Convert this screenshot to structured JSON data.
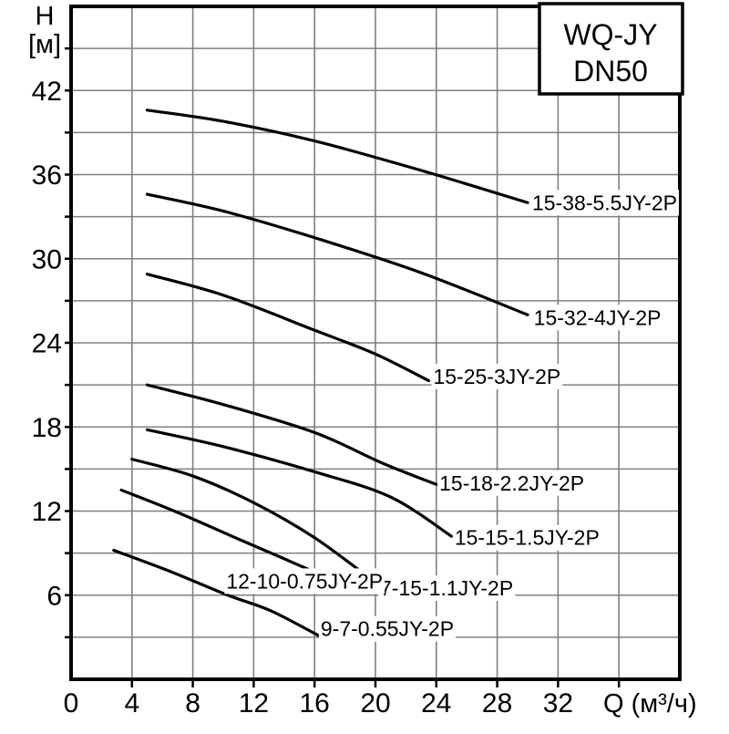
{
  "legend_box": {
    "line1": "WQ-JY",
    "line2": "DN50"
  },
  "axes": {
    "y_title_line1": "H",
    "y_title_line2": "[м]",
    "x_title": "Q (м³/ч)"
  },
  "chart_data": {
    "type": "line",
    "title": "WQ-JY DN50",
    "xlabel": "Q (м³/ч)",
    "ylabel": "H [м]",
    "xlim": [
      0,
      40
    ],
    "ylim": [
      0,
      48
    ],
    "x_grid_step": 4,
    "y_grid_step": 3,
    "x_tick_labels": [
      0,
      4,
      8,
      12,
      16,
      20,
      24,
      28,
      32
    ],
    "y_tick_labels": [
      42,
      36,
      30,
      24,
      18,
      12,
      6
    ],
    "grid": true,
    "legend_position": "top-right",
    "colors": {
      "curve": "#000000",
      "grid": "#7f7f7f",
      "text": "#000000",
      "background": "#ffffff"
    },
    "series": [
      {
        "name": "15-38-5.5JY-2P",
        "points": [
          [
            5,
            40.6
          ],
          [
            10,
            39.8
          ],
          [
            16,
            38.4
          ],
          [
            23,
            36.3
          ],
          [
            30,
            34.0
          ]
        ],
        "label_at": [
          30.3,
          34.0
        ]
      },
      {
        "name": "15-32-4JY-2P",
        "points": [
          [
            5,
            34.6
          ],
          [
            10,
            33.4
          ],
          [
            16,
            31.5
          ],
          [
            23,
            29.0
          ],
          [
            30,
            26.0
          ]
        ],
        "label_at": [
          30.4,
          25.8
        ]
      },
      {
        "name": "15-25-3JY-2P",
        "points": [
          [
            5,
            28.9
          ],
          [
            10,
            27.4
          ],
          [
            16,
            24.9
          ],
          [
            20,
            23.2
          ],
          [
            23.5,
            21.3
          ]
        ],
        "label_at": [
          23.8,
          21.6
        ]
      },
      {
        "name": "15-18-2.2JY-2P",
        "points": [
          [
            5,
            21.0
          ],
          [
            10,
            19.6
          ],
          [
            16,
            17.6
          ],
          [
            20.5,
            15.4
          ],
          [
            24,
            13.9
          ]
        ],
        "label_at": [
          24.2,
          14.0
        ]
      },
      {
        "name": "15-15-1.5JY-2P",
        "points": [
          [
            5,
            17.8
          ],
          [
            10,
            16.6
          ],
          [
            16,
            14.8
          ],
          [
            21,
            13.0
          ],
          [
            25,
            10.2
          ]
        ],
        "label_at": [
          25.2,
          10.1
        ]
      },
      {
        "name": "7-15-1.1JY-2P",
        "points": [
          [
            4,
            15.7
          ],
          [
            8,
            14.5
          ],
          [
            12,
            12.6
          ],
          [
            16,
            10.1
          ],
          [
            20,
            6.9
          ]
        ],
        "label_at": [
          20.3,
          6.5
        ]
      },
      {
        "name": "12-10-0.75JY-2P",
        "points": [
          [
            3.3,
            13.5
          ],
          [
            7,
            11.9
          ],
          [
            11,
            10.0
          ],
          [
            14,
            8.6
          ],
          [
            16.1,
            7.6
          ]
        ],
        "label_at": [
          10.2,
          7.0
        ]
      },
      {
        "name": "9-7-0.55JY-2P",
        "points": [
          [
            2.8,
            9.2
          ],
          [
            6.5,
            7.7
          ],
          [
            10.3,
            6.0
          ],
          [
            13.1,
            4.9
          ],
          [
            16.3,
            3.1
          ]
        ],
        "label_at": [
          16.4,
          3.6
        ]
      }
    ]
  }
}
